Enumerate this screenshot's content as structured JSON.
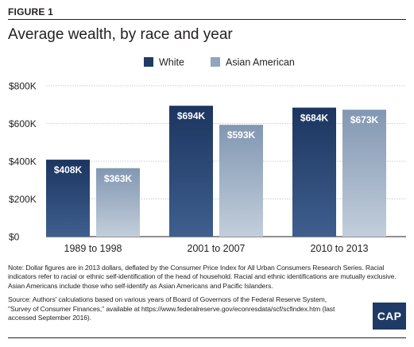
{
  "figure": {
    "label": "FIGURE 1",
    "title": "Average wealth, by race and year"
  },
  "chart_data": {
    "type": "bar",
    "categories": [
      "1989 to 1998",
      "2001 to 2007",
      "2010 to 2013"
    ],
    "series": [
      {
        "name": "White",
        "values": [
          408,
          694,
          684
        ],
        "labels": [
          "$408K",
          "$694K",
          "$684K"
        ],
        "color": "#1f3a64"
      },
      {
        "name": "Asian American",
        "values": [
          363,
          593,
          673
        ],
        "labels": [
          "$363K",
          "$593K",
          "$673K"
        ],
        "color": "#8fa5be"
      }
    ],
    "yticks": [
      0,
      200,
      400,
      600,
      800
    ],
    "ytick_labels": [
      "$0",
      "$200K",
      "$400K",
      "$600K",
      "$800K"
    ],
    "ylim": [
      0,
      800
    ],
    "value_unit": "thousands of 2013 dollars",
    "grid": true,
    "legend_position": "top-center",
    "title": "Average wealth, by race and year",
    "xlabel": "",
    "ylabel": ""
  },
  "notes": {
    "note": "Note: Dollar figures are in 2013 dollars, deflated by the Consumer Price Index for All Urban Consumers Research Series. Racial indicators refer to racial or ethnic self-identification of the head of household. Racial and ethnic identifications are mutually exclusive. Asian Americans include those who self-identify as Asian Americans and Pacific Islanders.",
    "source": "Source: Authors' calculations based on various years of Board of Governors of the Federal Reserve System, \"Survey of Consumer Finances,\" available at https://www.federalreserve.gov/econresdata/scf/scfindex.htm (last accessed September 2016)."
  },
  "logo": {
    "text": "CAP"
  }
}
